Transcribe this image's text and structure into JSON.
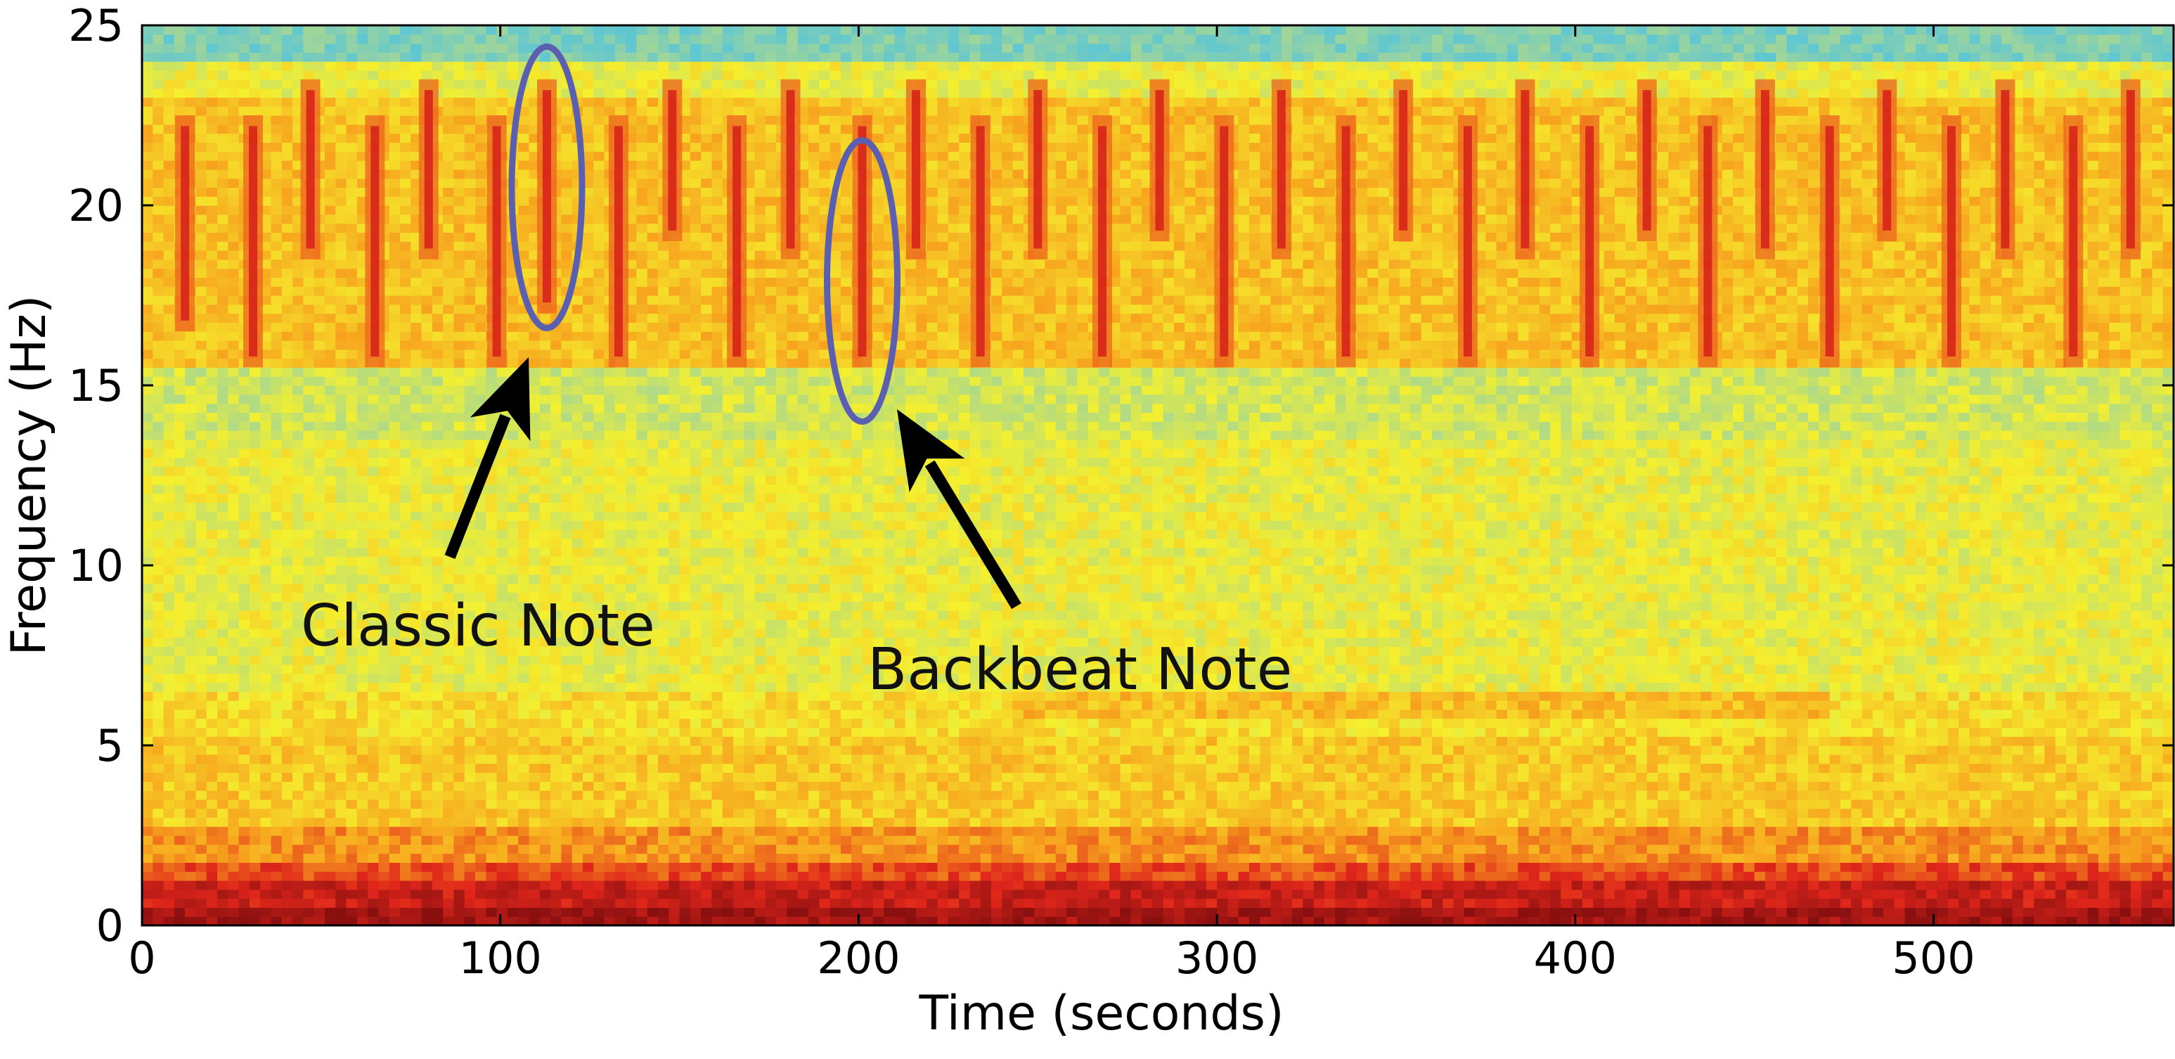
{
  "chart_data": {
    "type": "heatmap",
    "title": "",
    "xlabel": "Time (seconds)",
    "ylabel": "Frequency (Hz)",
    "xlim": [
      0,
      567
    ],
    "ylim": [
      0,
      25
    ],
    "x_ticks": [
      0,
      100,
      200,
      300,
      400,
      500
    ],
    "y_ticks": [
      0,
      5,
      10,
      15,
      20,
      25
    ],
    "grid": false,
    "legend": "none",
    "colormap": [
      "#4fc3e0",
      "#9fd59a",
      "#f5f02e",
      "#f7a21e",
      "#e0261b",
      "#8a1010"
    ],
    "bands": [
      {
        "f_low": 0,
        "f_high": 1.2,
        "level": "very high"
      },
      {
        "f_low": 1.2,
        "f_high": 2.8,
        "level": "high"
      },
      {
        "f_low": 2.8,
        "f_high": 6.5,
        "level": "medium-high"
      },
      {
        "f_low": 6.5,
        "f_high": 15.5,
        "level": "medium"
      },
      {
        "f_low": 15.5,
        "f_high": 23.5,
        "level": "medium-high"
      },
      {
        "f_low": 23.5,
        "f_high": 25,
        "level": "low"
      }
    ],
    "note_events": [
      {
        "t": 12,
        "f_low": 16.5,
        "f_high": 22.5
      },
      {
        "t": 31,
        "f_low": 15.5,
        "f_high": 22.5
      },
      {
        "t": 47,
        "f_low": 18.5,
        "f_high": 23.5
      },
      {
        "t": 65,
        "f_low": 15.5,
        "f_high": 22.5
      },
      {
        "t": 80,
        "f_low": 18.5,
        "f_high": 23.5
      },
      {
        "t": 99,
        "f_low": 15.5,
        "f_high": 22.5
      },
      {
        "t": 113,
        "f_low": 17,
        "f_high": 23.5
      },
      {
        "t": 133,
        "f_low": 15.5,
        "f_high": 22.5
      },
      {
        "t": 148,
        "f_low": 19,
        "f_high": 23.5
      },
      {
        "t": 166,
        "f_low": 15.5,
        "f_high": 22.5
      },
      {
        "t": 181,
        "f_low": 18.5,
        "f_high": 23.5
      },
      {
        "t": 201,
        "f_low": 15.5,
        "f_high": 22.5
      },
      {
        "t": 216,
        "f_low": 18.5,
        "f_high": 23.5
      },
      {
        "t": 234,
        "f_low": 15.5,
        "f_high": 22.5
      },
      {
        "t": 250,
        "f_low": 18.5,
        "f_high": 23.5
      },
      {
        "t": 268,
        "f_low": 15.5,
        "f_high": 22.5
      },
      {
        "t": 284,
        "f_low": 19,
        "f_high": 23.5
      },
      {
        "t": 302,
        "f_low": 15.5,
        "f_high": 22.5
      },
      {
        "t": 318,
        "f_low": 18.5,
        "f_high": 23.5
      },
      {
        "t": 336,
        "f_low": 15.5,
        "f_high": 22.5
      },
      {
        "t": 352,
        "f_low": 19,
        "f_high": 23.5
      },
      {
        "t": 370,
        "f_low": 15.5,
        "f_high": 22.5
      },
      {
        "t": 386,
        "f_low": 18.5,
        "f_high": 23.5
      },
      {
        "t": 404,
        "f_low": 15.5,
        "f_high": 22.5
      },
      {
        "t": 420,
        "f_low": 19,
        "f_high": 23.5
      },
      {
        "t": 437,
        "f_low": 15.5,
        "f_high": 22.5
      },
      {
        "t": 453,
        "f_low": 18.5,
        "f_high": 23.5
      },
      {
        "t": 471,
        "f_low": 15.5,
        "f_high": 22.5
      },
      {
        "t": 487,
        "f_low": 19,
        "f_high": 23.5
      },
      {
        "t": 505,
        "f_low": 15.5,
        "f_high": 22.5
      },
      {
        "t": 520,
        "f_low": 18.5,
        "f_high": 23.5
      },
      {
        "t": 539,
        "f_low": 15.5,
        "f_high": 22.5
      },
      {
        "t": 555,
        "f_low": 18.5,
        "f_high": 23.5
      }
    ],
    "annotations": [
      {
        "text": "Classic Note",
        "t": 113,
        "f_center": 20.5
      },
      {
        "text": "Backbeat Note",
        "t": 201,
        "f_center": 17.9
      }
    ]
  },
  "annotation_color": "#5a5fb0",
  "arrow_color": "#000000"
}
